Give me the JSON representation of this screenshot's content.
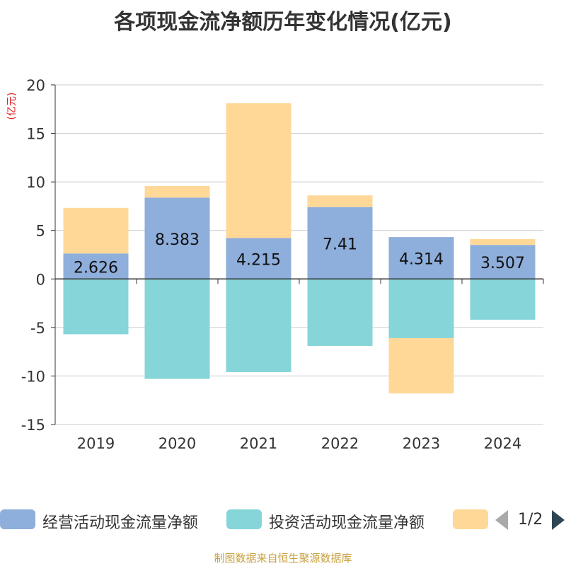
{
  "chart_data": {
    "type": "bar",
    "stacked": true,
    "title": "各项现金流净额历年变化情况(亿元)",
    "ylabel": "(亿元)",
    "ylim": [
      -15,
      20
    ],
    "yticks": [
      20,
      15,
      10,
      5,
      0,
      -5,
      -10,
      -15
    ],
    "grid": true,
    "categories": [
      "2019",
      "2020",
      "2021",
      "2022",
      "2023",
      "2024"
    ],
    "series": [
      {
        "name": "经营活动现金流量净额",
        "color": "#8eaedb",
        "values": [
          2.626,
          8.383,
          4.215,
          7.41,
          4.314,
          3.507
        ],
        "labels": [
          "2.626",
          "8.383",
          "4.215",
          "7.41",
          "4.314",
          "3.507"
        ]
      },
      {
        "name": "投资活动现金流量净额",
        "color": "#86d5d8",
        "values": [
          -5.7,
          -10.3,
          -9.6,
          -6.9,
          -6.1,
          -4.2
        ]
      },
      {
        "name": "",
        "color": "#ffd898",
        "values": [
          4.7,
          1.2,
          13.9,
          1.2,
          -5.7,
          0.6
        ]
      }
    ]
  },
  "legend": {
    "items": [
      {
        "label": "经营活动现金流量净额",
        "color": "#8eaedb"
      },
      {
        "label": "投资活动现金流量净额",
        "color": "#86d5d8"
      },
      {
        "label": "",
        "color": "#ffd898"
      }
    ],
    "page_indicator": "1/2"
  },
  "footer": "制图数据来自恒生聚源数据库"
}
